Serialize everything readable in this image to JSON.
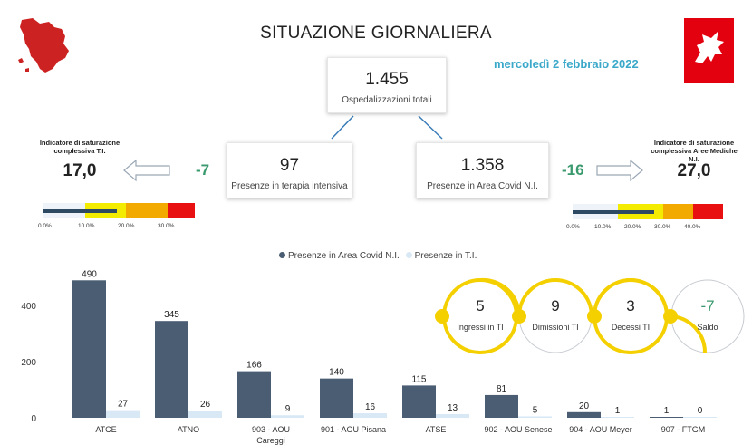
{
  "header": {
    "title": "SITUAZIONE GIORNALIERA",
    "date": "mercoledì 2 febbraio 2022"
  },
  "total": {
    "value": "1.455",
    "label": "Ospedalizzazioni totali"
  },
  "ti": {
    "value": "97",
    "label": "Presenze in terapia intensiva",
    "delta": "-7"
  },
  "covid": {
    "value": "1.358",
    "label": "Presenze in Area Covid N.I.",
    "delta": "-16"
  },
  "sat_ti": {
    "label": "Indicatore di saturazione complessiva T.I.",
    "value": "17,0",
    "level_pct": 17.0,
    "ticks": [
      "0.0%",
      "10.0%",
      "20.0%",
      "30.0%"
    ]
  },
  "sat_am": {
    "label": "Indicatore di saturazione complessiva Aree Mediche N.I.",
    "value": "27,0",
    "level_pct": 27.0,
    "ticks": [
      "0.0%",
      "10.0%",
      "20.0%",
      "30.0%",
      "40.0%"
    ]
  },
  "flow": [
    {
      "value": "5",
      "label": "Ingressi in TI"
    },
    {
      "value": "9",
      "label": "Dimissioni TI"
    },
    {
      "value": "3",
      "label": "Decessi TI"
    },
    {
      "value": "-7",
      "label": "Saldo"
    }
  ],
  "colors": {
    "covid": "#4a5d73",
    "ti": "#d9e8f5",
    "accent": "#3aa8c9",
    "delta": "#3a9a6e",
    "ring": "#f5d000",
    "logo_red": "#e3000f",
    "map_red": "#cc2222"
  },
  "icons": {
    "map": "tuscany-map-icon",
    "logo": "pegasus-logo-icon",
    "arrow_left": "arrow-left-icon",
    "arrow_right": "arrow-right-icon"
  },
  "chart_data": {
    "type": "bar",
    "legend": [
      "Presenze in Area Covid N.I.",
      "Presenze in T.I."
    ],
    "categories": [
      "ATCE",
      "ATNO",
      "903 - AOU Careggi",
      "901 - AOU Pisana",
      "ATSE",
      "902 - AOU Senese",
      "904 - AOU Meyer",
      "907 - FTGM"
    ],
    "category_display": [
      "ATCE",
      "ATNO",
      "903 - AOU",
      "901 - AOU Pisana",
      "ATSE",
      "902 - AOU Senese",
      "904 - AOU Meyer",
      "907 - FTGM"
    ],
    "series": [
      {
        "name": "Presenze in Area Covid N.I.",
        "values": [
          490,
          345,
          166,
          140,
          115,
          81,
          20,
          1
        ]
      },
      {
        "name": "Presenze in T.I.",
        "values": [
          27,
          26,
          9,
          16,
          13,
          5,
          1,
          0
        ]
      }
    ],
    "yticks": [
      "0",
      "200",
      "400"
    ],
    "ylim": [
      0,
      520
    ]
  }
}
